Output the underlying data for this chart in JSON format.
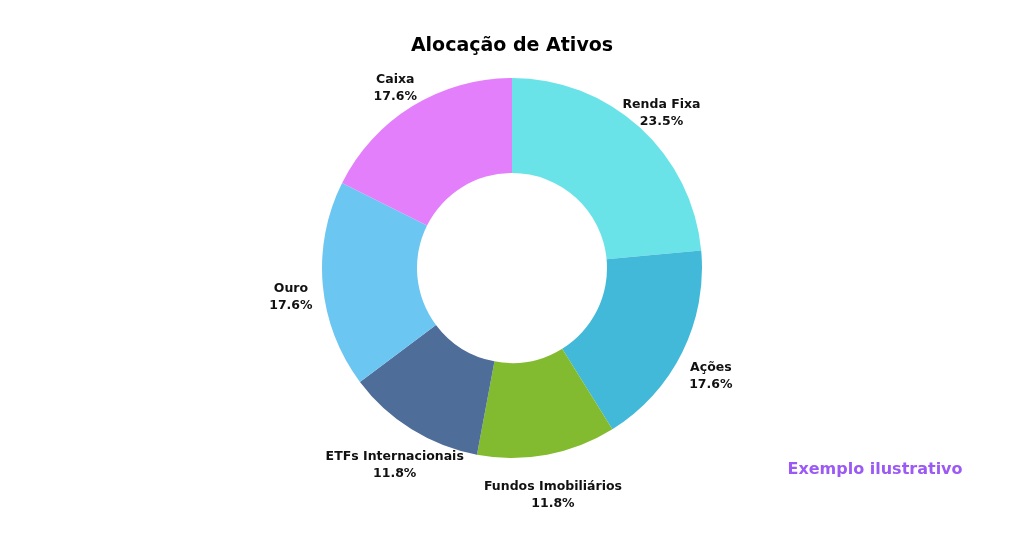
{
  "chart_data": {
    "type": "donut",
    "title": "Alocação de Ativos",
    "categories": [
      "Renda Fixa",
      "Ações",
      "Fundos Imobiliários",
      "ETFs Internacionais",
      "Ouro",
      "Caixa"
    ],
    "values": [
      23.5,
      17.6,
      11.8,
      11.8,
      17.6,
      17.6
    ],
    "value_labels": [
      "23.5%",
      "17.6%",
      "11.8%",
      "11.8%",
      "17.6%",
      "17.6%"
    ],
    "colors": [
      "#6ae3e8",
      "#43b9d9",
      "#83bb30",
      "#4f6d99",
      "#6cc6f2",
      "#e47ffc"
    ],
    "annotations": [
      "Exemplo ilustrativo"
    ]
  }
}
